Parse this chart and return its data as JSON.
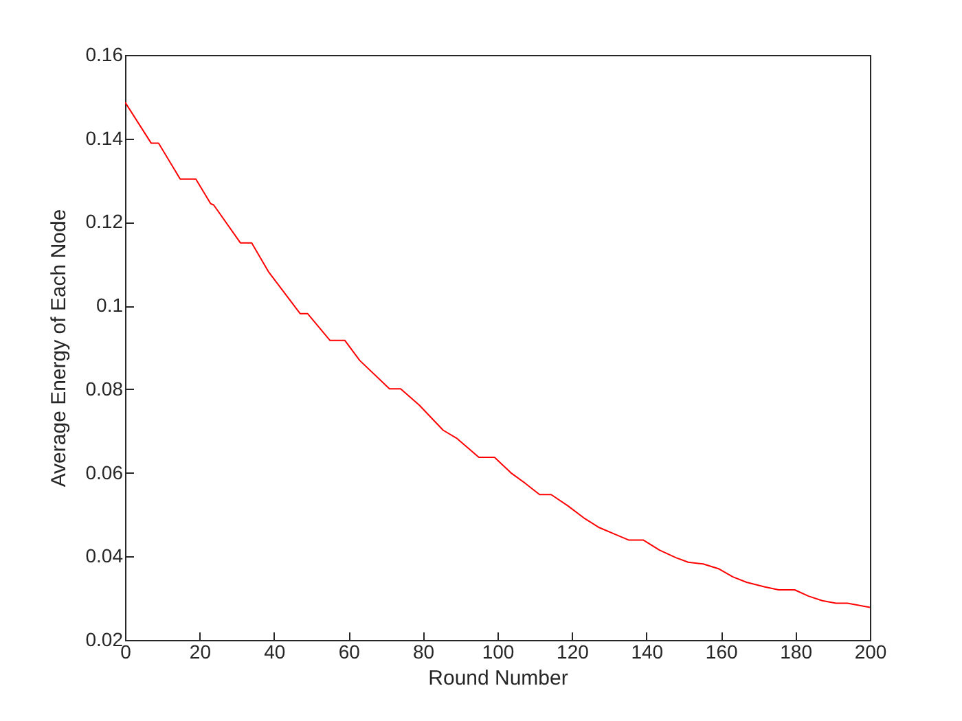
{
  "chart_data": {
    "type": "line",
    "xlabel": "Round Number",
    "ylabel": "Average Energy of Each Node",
    "xlim": [
      0,
      200
    ],
    "xticks": [
      0,
      20,
      40,
      60,
      80,
      100,
      120,
      140,
      160,
      180,
      200
    ],
    "ylim": [
      0.02,
      0.16
    ],
    "yticks": [
      0.02,
      0.04,
      0.06,
      0.08,
      0.1,
      0.12,
      0.14,
      0.16
    ],
    "grid": false,
    "series": [
      {
        "color": "#ff0000",
        "x": [
          0,
          7,
          9,
          14.8,
          19,
          23,
          23.8,
          31,
          34,
          38.6,
          47,
          49,
          55,
          59,
          63,
          71,
          74,
          79,
          85.4,
          89,
          95,
          99.2,
          103.6,
          107.3,
          111.3,
          114.4,
          118.9,
          123.2,
          127.3,
          131.8,
          135.3,
          139.2,
          143.5,
          147.9,
          151.2,
          155.2,
          159.5,
          163.2,
          166.9,
          171.8,
          175.5,
          179.8,
          183.5,
          187.2,
          190.9,
          194,
          200
        ],
        "values": [
          0.1487,
          0.1389,
          0.1389,
          0.1303,
          0.1303,
          0.1244,
          0.1241,
          0.115,
          0.115,
          0.108,
          0.0981,
          0.0981,
          0.0917,
          0.0917,
          0.0869,
          0.0801,
          0.0801,
          0.0762,
          0.0702,
          0.0683,
          0.0637,
          0.0637,
          0.06,
          0.0576,
          0.0548,
          0.0548,
          0.0521,
          0.0492,
          0.0469,
          0.0452,
          0.0439,
          0.0439,
          0.0415,
          0.0397,
          0.0386,
          0.0382,
          0.037,
          0.0351,
          0.0338,
          0.0327,
          0.032,
          0.032,
          0.0305,
          0.0294,
          0.0288,
          0.0288,
          0.0278
        ]
      }
    ]
  }
}
